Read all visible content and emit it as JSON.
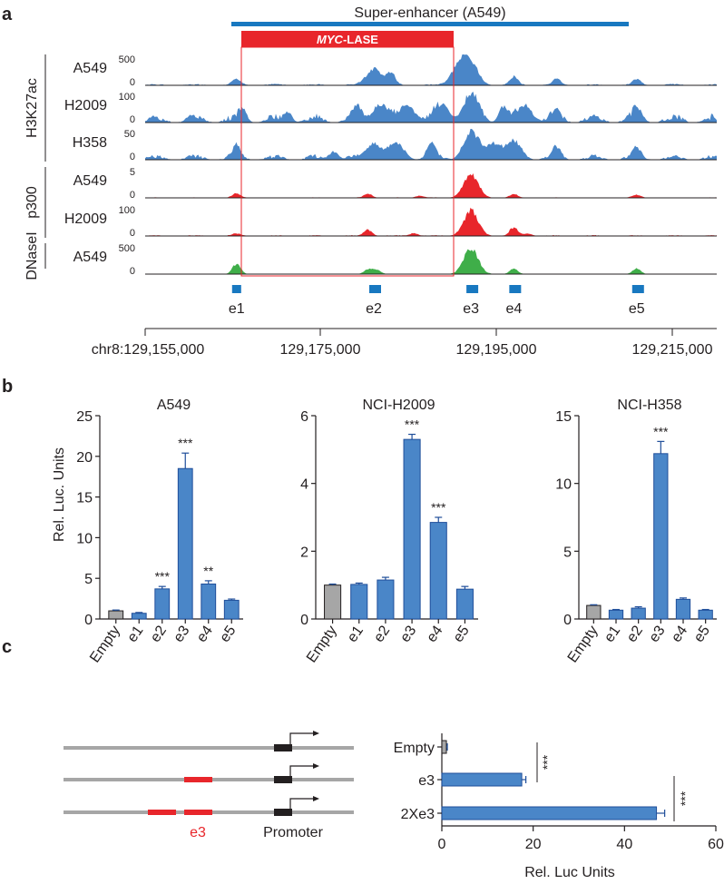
{
  "panels": {
    "a": "a",
    "b": "b",
    "c": "c"
  },
  "colors": {
    "blue": "#4a86c8",
    "blue_dark": "#1f4e9a",
    "blue_bar": "#1878c0",
    "red": "#e8262b",
    "red_track": "#dc3c3c",
    "green": "#3fae49",
    "grey": "#a6a6a6",
    "ink": "#231f20"
  },
  "panel_a": {
    "super_enhancer_label": "Super-enhancer (A549)",
    "lase_italic": "MYC",
    "lase_rest": "-LASE",
    "group_labels": {
      "h3k27ac": "H3K27ac",
      "p300": "p300",
      "dnase": "DNaseI"
    },
    "tracks": [
      {
        "cell": "A549",
        "mark": "H3K27ac",
        "ymax": "500",
        "ymin": "0",
        "color": "blue",
        "peaks": [
          [
            0.16,
            0.22
          ],
          [
            0.4,
            0.62
          ],
          [
            0.43,
            0.45
          ],
          [
            0.55,
            0.78
          ],
          [
            0.57,
            0.7
          ],
          [
            0.645,
            0.3
          ],
          [
            0.72,
            0.22
          ],
          [
            0.86,
            0.22
          ]
        ],
        "noise": 0.05
      },
      {
        "cell": "H2009",
        "mark": "H3K27ac",
        "ymax": "100",
        "ymin": "0",
        "color": "blue",
        "peaks": [
          [
            0.17,
            0.4
          ],
          [
            0.25,
            0.35
          ],
          [
            0.37,
            0.5
          ],
          [
            0.41,
            0.65
          ],
          [
            0.46,
            0.6
          ],
          [
            0.52,
            0.55
          ],
          [
            0.57,
            0.95
          ],
          [
            0.625,
            0.5
          ],
          [
            0.665,
            0.55
          ],
          [
            0.72,
            0.35
          ],
          [
            0.86,
            0.4
          ]
        ],
        "noise": 0.3
      },
      {
        "cell": "H358",
        "mark": "H3K27ac",
        "ymax": "50",
        "ymin": "0",
        "color": "blue",
        "peaks": [
          [
            0.16,
            0.45
          ],
          [
            0.33,
            0.3
          ],
          [
            0.4,
            0.6
          ],
          [
            0.44,
            0.55
          ],
          [
            0.5,
            0.5
          ],
          [
            0.57,
            0.95
          ],
          [
            0.61,
            0.6
          ],
          [
            0.645,
            0.55
          ],
          [
            0.72,
            0.4
          ],
          [
            0.86,
            0.4
          ]
        ],
        "noise": 0.18
      },
      {
        "cell": "A549",
        "mark": "p300",
        "ymax": "5",
        "ymin": "0",
        "color": "red",
        "peaks": [
          [
            0.16,
            0.15
          ],
          [
            0.39,
            0.15
          ],
          [
            0.48,
            0.08
          ],
          [
            0.57,
            0.85
          ],
          [
            0.645,
            0.12
          ],
          [
            0.86,
            0.1
          ]
        ],
        "noise": 0.02
      },
      {
        "cell": "H2009",
        "mark": "p300",
        "ymax": "100",
        "ymin": "0",
        "color": "red",
        "peaks": [
          [
            0.16,
            0.08
          ],
          [
            0.39,
            0.22
          ],
          [
            0.47,
            0.1
          ],
          [
            0.57,
            0.9
          ],
          [
            0.645,
            0.3
          ],
          [
            0.67,
            0.08
          ]
        ],
        "noise": 0.03
      },
      {
        "cell": "A549",
        "mark": "DNaseI",
        "ymax": "500",
        "ymin": "0",
        "color": "green",
        "peaks": [
          [
            0.16,
            0.38
          ],
          [
            0.39,
            0.18
          ],
          [
            0.405,
            0.15
          ],
          [
            0.57,
            0.92
          ],
          [
            0.645,
            0.2
          ],
          [
            0.86,
            0.2
          ]
        ],
        "noise": 0.0
      }
    ],
    "enhancers": [
      {
        "label": "e1",
        "pos": 0.16
      },
      {
        "label": "e2",
        "pos": 0.4
      },
      {
        "label": "e3",
        "pos": 0.57
      },
      {
        "label": "e4",
        "pos": 0.645
      },
      {
        "label": "e5",
        "pos": 0.86
      }
    ],
    "axis": {
      "ticks": [
        "chr8:129,155,000",
        "129,175,000",
        "129,195,000",
        "129,215,000"
      ]
    }
  },
  "chart_data": [
    {
      "type": "bar",
      "title": "A549",
      "ylabel": "Rel. Luc. Units",
      "xlabel": "",
      "ylim": [
        0,
        25
      ],
      "yticks": [
        0,
        5,
        10,
        15,
        20,
        25
      ],
      "categories": [
        "Empty",
        "e1",
        "e2",
        "e3",
        "e4",
        "e5"
      ],
      "values": [
        1.0,
        0.7,
        3.7,
        18.5,
        4.3,
        2.3
      ],
      "errors": [
        0.1,
        0.1,
        0.3,
        1.9,
        0.4,
        0.15
      ],
      "significance": [
        "",
        "",
        "***",
        "***",
        "**",
        ""
      ],
      "bar_colors": [
        "grey",
        "blue",
        "blue",
        "blue",
        "blue",
        "blue"
      ]
    },
    {
      "type": "bar",
      "title": "NCI-H2009",
      "ylabel": "",
      "xlabel": "",
      "ylim": [
        0,
        6
      ],
      "yticks": [
        0,
        2,
        4,
        6
      ],
      "categories": [
        "Empty",
        "e1",
        "e2",
        "e3",
        "e4",
        "e5"
      ],
      "values": [
        1.0,
        1.02,
        1.15,
        5.3,
        2.85,
        0.88
      ],
      "errors": [
        0.03,
        0.04,
        0.08,
        0.15,
        0.15,
        0.08
      ],
      "significance": [
        "",
        "",
        "",
        "***",
        "***",
        ""
      ],
      "bar_colors": [
        "grey",
        "blue",
        "blue",
        "blue",
        "blue",
        "blue"
      ]
    },
    {
      "type": "bar",
      "title": "NCI-H358",
      "ylabel": "",
      "xlabel": "",
      "ylim": [
        0,
        15
      ],
      "yticks": [
        0,
        5,
        10,
        15
      ],
      "categories": [
        "Empty",
        "e1",
        "e2",
        "e3",
        "e4",
        "e5"
      ],
      "values": [
        1.0,
        0.65,
        0.8,
        12.2,
        1.45,
        0.65
      ],
      "errors": [
        0.05,
        0.05,
        0.1,
        0.9,
        0.1,
        0.05
      ],
      "significance": [
        "",
        "",
        "",
        "***",
        "",
        ""
      ],
      "bar_colors": [
        "grey",
        "blue",
        "blue",
        "blue",
        "blue",
        "blue"
      ]
    },
    {
      "type": "bar",
      "orientation": "horizontal",
      "title": "",
      "xlabel": "Rel. Luc Units",
      "ylabel": "",
      "xlim": [
        0,
        60
      ],
      "xticks": [
        0,
        20,
        40,
        60
      ],
      "categories": [
        "Empty",
        "e3",
        "2Xe3"
      ],
      "values": [
        1.0,
        17.5,
        47.0
      ],
      "errors": [
        0.2,
        0.9,
        1.8
      ],
      "significance_brackets": [
        "***",
        "***"
      ],
      "bar_colors": [
        "grey",
        "blue",
        "blue"
      ]
    }
  ],
  "panel_c": {
    "e3_label": "e3",
    "promoter_label": "Promoter"
  }
}
